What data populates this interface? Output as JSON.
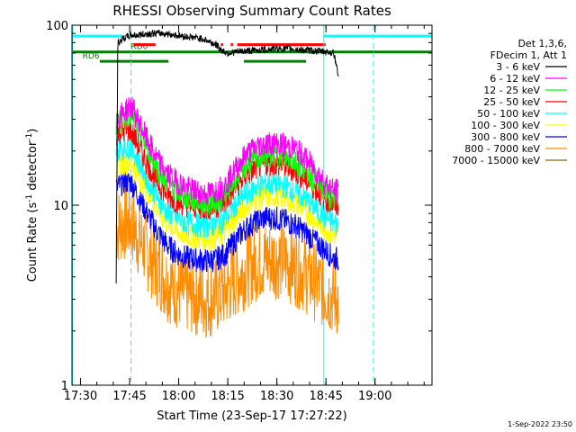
{
  "chart_data": {
    "type": "line",
    "title": "RHESSI Observing Summary Count Rates",
    "xlabel": "Start Time (23-Sep-17 17:27:22)",
    "ylabel_main": "Count Rate (s",
    "ylabel_sup": "-1",
    "ylabel_tail": " detector",
    "ylabel_sup2": "-1",
    "ylabel_end": ")",
    "x_unit": "minutes since 17:27:22",
    "xlim": [
      0,
      110
    ],
    "ylim": [
      1,
      100
    ],
    "yscale": "log",
    "x_ticks": [
      {
        "label": "17:30",
        "value": 2.6
      },
      {
        "label": "17:45",
        "value": 17.6
      },
      {
        "label": "18:00",
        "value": 32.6
      },
      {
        "label": "18:15",
        "value": 47.6
      },
      {
        "label": "18:30",
        "value": 62.6
      },
      {
        "label": "18:45",
        "value": 77.6
      },
      {
        "label": "19:00",
        "value": 92.6
      }
    ],
    "y_ticks": [
      {
        "label": "1",
        "value": 1
      },
      {
        "label": "10",
        "value": 10
      },
      {
        "label": "100",
        "value": 100
      }
    ],
    "legend_header": [
      "Det 1,3,6,",
      "FDecim 1, Att 1"
    ],
    "legend_position": "right",
    "footer": "1-Sep-2022 23:50",
    "vlines": [
      {
        "x": 0,
        "style": "solid",
        "color": "#00ffff"
      },
      {
        "x": 17.9,
        "style": "dashed",
        "color": "#00ffff"
      },
      {
        "x": 76.8,
        "style": "solid",
        "color": "#00ffff"
      },
      {
        "x": 92.0,
        "style": "dashed",
        "color": "#00ffff"
      }
    ],
    "flag_bars": [
      {
        "label": "",
        "color": "#00ffff",
        "y": 87,
        "segments": [
          [
            0,
            15.5
          ],
          [
            76.8,
            110
          ]
        ]
      },
      {
        "label": "RD0",
        "color": "#008000",
        "y": 71,
        "segments": [
          [
            0,
            110
          ]
        ]
      },
      {
        "label": "RD6",
        "color": "#008000",
        "y": 63,
        "segments": [
          [
            8.5,
            29.5
          ],
          [
            52.5,
            71.5
          ]
        ]
      },
      {
        "label": "",
        "color": "#ff0000",
        "y": 78,
        "segments": [
          [
            18.8,
            25.5
          ],
          [
            45.5,
            46.2
          ],
          [
            48.5,
            49.2
          ],
          [
            50.5,
            77.5
          ]
        ]
      }
    ],
    "series": [
      {
        "name": "3 - 6 keV",
        "color": "#000000",
        "x": [
          13.5,
          14,
          16,
          18,
          20,
          24,
          28,
          32,
          36,
          40,
          44,
          46,
          48,
          50,
          54,
          58,
          62,
          66,
          70,
          74,
          78,
          80,
          81.5
        ],
        "y": [
          3.8,
          80,
          85,
          88,
          88,
          90,
          90,
          88,
          86,
          84,
          78,
          72,
          70,
          71,
          72,
          73,
          74,
          74,
          73,
          72,
          71,
          70,
          52
        ]
      },
      {
        "name": "6 - 12 keV",
        "color": "#ff00ff",
        "x": [
          13.5,
          16,
          18,
          20,
          23,
          26,
          29,
          32,
          35,
          38,
          41,
          44,
          47,
          50,
          53,
          56,
          59,
          62,
          65,
          68,
          71,
          74,
          77,
          80,
          81.5
        ],
        "y": [
          30,
          33,
          36,
          30,
          23,
          18,
          15,
          13.5,
          12.5,
          12,
          11.5,
          12,
          13,
          16,
          19,
          21,
          22,
          22,
          21.5,
          20.5,
          18.5,
          16,
          13.5,
          12,
          12
        ]
      },
      {
        "name": "12 - 25 keV",
        "color": "#00ff00",
        "x": [
          13.5,
          16,
          18,
          20,
          23,
          26,
          29,
          32,
          35,
          38,
          41,
          44,
          47,
          50,
          53,
          56,
          59,
          62,
          65,
          68,
          71,
          74,
          77,
          80,
          81.5
        ],
        "y": [
          28,
          30,
          33,
          27,
          21,
          16,
          13.5,
          12,
          11,
          10.5,
          10.2,
          10.5,
          11.5,
          14,
          16.5,
          18,
          19,
          19,
          18.5,
          17.5,
          16,
          14,
          12,
          10.5,
          10.5
        ]
      },
      {
        "name": "25 - 50 keV",
        "color": "#ff0000",
        "x": [
          13.5,
          16,
          18,
          20,
          23,
          26,
          29,
          32,
          35,
          38,
          41,
          44,
          47,
          50,
          53,
          56,
          59,
          62,
          65,
          68,
          71,
          74,
          77,
          80,
          81.5
        ],
        "y": [
          25,
          26,
          26,
          22,
          17,
          13.5,
          11.5,
          10.5,
          10,
          9.8,
          9.6,
          9.8,
          10.5,
          12.5,
          14.5,
          16,
          17,
          17,
          16.5,
          15.5,
          14,
          12.5,
          11,
          10,
          9.8
        ]
      },
      {
        "name": "50 - 100 keV",
        "color": "#00ffff",
        "x": [
          13.5,
          16,
          18,
          20,
          23,
          26,
          29,
          32,
          35,
          38,
          41,
          44,
          47,
          50,
          53,
          56,
          59,
          62,
          65,
          68,
          71,
          74,
          77,
          80,
          81.5
        ],
        "y": [
          20,
          21,
          21,
          18,
          14,
          11,
          9.2,
          8.5,
          8,
          7.8,
          7.6,
          7.8,
          8.5,
          10,
          11.5,
          12.5,
          13.2,
          13.2,
          12.8,
          12,
          11,
          9.8,
          8.7,
          7.9,
          7.7
        ]
      },
      {
        "name": "100 - 300 keV",
        "color": "#ffff00",
        "x": [
          13.5,
          16,
          18,
          20,
          23,
          26,
          29,
          32,
          35,
          38,
          41,
          44,
          47,
          50,
          53,
          56,
          59,
          62,
          65,
          68,
          71,
          74,
          77,
          80,
          81.5
        ],
        "y": [
          16,
          17,
          17.5,
          15,
          12,
          9.5,
          8,
          7.2,
          6.8,
          6.6,
          6.5,
          6.6,
          7.2,
          8.5,
          9.8,
          10.7,
          11.2,
          11.2,
          10.9,
          10.3,
          9.4,
          8.4,
          7.5,
          6.8,
          6.6
        ]
      },
      {
        "name": "300 - 800 keV",
        "color": "#0000ff",
        "x": [
          13.5,
          16,
          18,
          20,
          23,
          26,
          29,
          32,
          35,
          38,
          41,
          44,
          47,
          50,
          53,
          56,
          59,
          62,
          65,
          68,
          71,
          74,
          77,
          80,
          81.5
        ],
        "y": [
          12.5,
          13.5,
          13.5,
          11.5,
          9,
          7.2,
          6,
          5.4,
          5.1,
          5,
          4.9,
          5,
          5.4,
          6.4,
          7.4,
          8.1,
          8.5,
          8.5,
          8.2,
          7.8,
          7.1,
          6.4,
          5.7,
          5.1,
          5
        ]
      },
      {
        "name": "800 - 7000 keV",
        "color": "#ff8c00",
        "x": [
          13.5,
          16,
          18,
          20,
          23,
          26,
          29,
          32,
          35,
          38,
          41,
          44,
          47,
          50,
          53,
          56,
          59,
          62,
          65,
          68,
          71,
          74,
          77,
          80,
          81.5
        ],
        "y": [
          7.5,
          8,
          8,
          6.8,
          5.5,
          4.5,
          3.8,
          3.4,
          3.2,
          3.1,
          3,
          3.1,
          3.4,
          3.9,
          4.4,
          4.8,
          5,
          5,
          4.9,
          4.6,
          4.2,
          3.8,
          3.4,
          3.1,
          3
        ]
      },
      {
        "name": "7000 - 15000 keV",
        "color": "#8b6914",
        "x": [],
        "y": []
      }
    ]
  }
}
